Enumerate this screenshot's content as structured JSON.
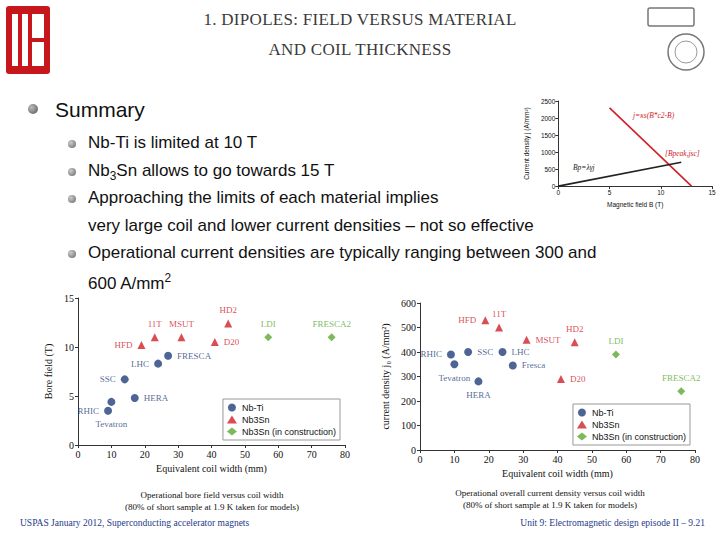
{
  "header": {
    "title_lines": [
      "1. DIPOLES: FIELD VERSUS MATERIAL",
      "AND COIL THICKNESS"
    ]
  },
  "bullets": {
    "heading": "Summary",
    "items": [
      {
        "lines": [
          [
            "Nb-Ti is limited at 10 T"
          ]
        ]
      },
      {
        "lines": [
          [
            "Nb",
            {
              "sub": "3"
            },
            "Sn allows to go towards 15 T"
          ]
        ]
      },
      {
        "lines": [
          [
            "Approaching the limits of each material implies"
          ],
          [
            "very large coil and lower current densities – not so effective"
          ]
        ]
      },
      {
        "lines": [
          [
            "Operational current densities are typically ranging between 300 and"
          ],
          [
            "600 A/mm",
            {
              "sup": "2"
            }
          ]
        ]
      }
    ]
  },
  "footer": {
    "left": "USPAS January 2012,  Superconducting accelerator magnets",
    "right": "Unit 9: Electromagnetic design episode II – 9.21"
  },
  "chart_data": [
    {
      "type": "scatter",
      "x_label": "Equivalent coil width (mm)",
      "y_label": "Bore field (T)",
      "xlim": [
        0,
        80
      ],
      "xticks": [
        0,
        10,
        20,
        30,
        40,
        50,
        60,
        70,
        80
      ],
      "ylim": [
        0,
        15
      ],
      "yticks": [
        0,
        5,
        10,
        15
      ],
      "grid": false,
      "legend": "lower right",
      "caption": [
        "Operational bore field versus coil width",
        "(80% of short sample at 1.9 K taken for models)"
      ],
      "series": [
        {
          "name": "Nb-Ti",
          "color": "#1f3f7a",
          "marker": "circle",
          "labels": [
            "RHIC",
            "Tevatron",
            "HERA",
            "SSC",
            "LHC",
            "FRESCA"
          ],
          "x": [
            9,
            10,
            17,
            14,
            24,
            27
          ],
          "values": [
            3.5,
            4.4,
            4.8,
            6.7,
            8.3,
            9.1
          ]
        },
        {
          "name": "Nb3Sn",
          "color": "#d0202a",
          "marker": "triangle",
          "labels": [
            "HFD",
            "11T",
            "MSUT",
            "D20",
            "HD2"
          ],
          "x": [
            19,
            23,
            31,
            41,
            45
          ],
          "values": [
            10.2,
            11.0,
            11.0,
            10.5,
            12.4
          ]
        },
        {
          "name": "Nb3Sn (in construction)",
          "color": "#5ca832",
          "marker": "diamond",
          "labels": [
            "LDI",
            "FRESCA2"
          ],
          "x": [
            57,
            76
          ],
          "values": [
            11.0,
            11.0
          ]
        }
      ]
    },
    {
      "type": "scatter",
      "x_label": "Equivalent coil width (mm)",
      "y_label": "current density j₀ (A/mm²)",
      "xlim": [
        0,
        80
      ],
      "xticks": [
        0,
        10,
        20,
        30,
        40,
        50,
        60,
        70,
        80
      ],
      "ylim": [
        0,
        600
      ],
      "yticks": [
        0,
        100,
        200,
        300,
        400,
        500,
        600
      ],
      "grid": false,
      "legend": "lower right",
      "caption": [
        "Operational overall current density versus coil width",
        "(80% of short sample at 1.9 K taken for models)"
      ],
      "series": [
        {
          "name": "Nb-Ti",
          "color": "#1f3f7a",
          "marker": "circle",
          "labels": [
            "RHIC",
            "Tevatron",
            "HERA",
            "SSC",
            "LHC",
            "Fresca"
          ],
          "x": [
            9,
            10,
            17,
            14,
            24,
            27
          ],
          "values": [
            390,
            350,
            280,
            400,
            400,
            345
          ]
        },
        {
          "name": "Nb3Sn",
          "color": "#d0202a",
          "marker": "triangle",
          "labels": [
            "HFD",
            "11T",
            "MSUT",
            "D20",
            "HD2"
          ],
          "x": [
            19,
            23,
            31,
            41,
            45
          ],
          "values": [
            530,
            500,
            450,
            290,
            440
          ]
        },
        {
          "name": "Nb3Sn (in construction)",
          "color": "#5ca832",
          "marker": "diamond",
          "labels": [
            "LDI",
            "FRESCA2"
          ],
          "x": [
            57,
            76
          ],
          "values": [
            390,
            240
          ]
        }
      ]
    },
    {
      "type": "line",
      "x_label": "Magnetic field B (T)",
      "y_label": "Current density j (A/mm²)",
      "xlim": [
        0,
        15
      ],
      "xticks": [
        0,
        5,
        10,
        15
      ],
      "ylim": [
        0,
        2500
      ],
      "yticks": [
        0,
        500,
        1000,
        1500,
        2000,
        2500
      ],
      "grid": false,
      "series": [
        {
          "color": "#d0202a",
          "x": [
            5,
            13
          ],
          "values": [
            2300,
            0
          ]
        },
        {
          "color": "#222222",
          "x": [
            0,
            12
          ],
          "values": [
            0,
            700
          ]
        }
      ],
      "annotations": [
        {
          "text": "j=κs(B*c2-B)",
          "color": "#d0202a"
        },
        {
          "text": "Bp=λγj",
          "color": "#222222"
        },
        {
          "text": "[Bpeak,jsc]",
          "color": "#d0202a"
        }
      ]
    }
  ]
}
